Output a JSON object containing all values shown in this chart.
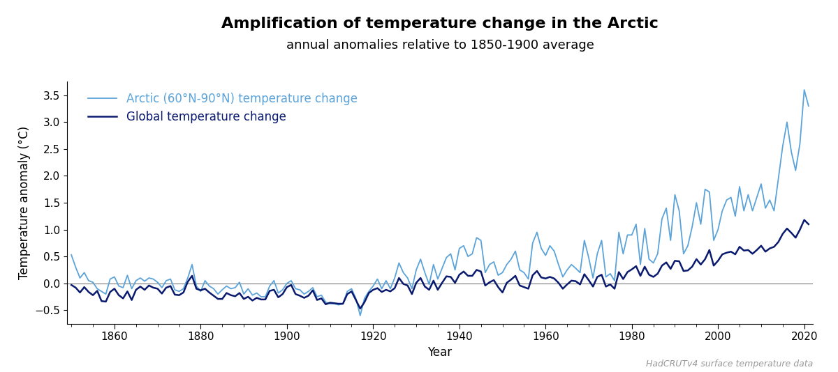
{
  "title": "Amplification of temperature change in the Arctic",
  "subtitle": "annual anomalies relative to 1850-1900 average",
  "xlabel": "Year",
  "ylabel": "Temperature anomaly (°C)",
  "xlim": [
    1849,
    2022
  ],
  "ylim": [
    -0.75,
    3.75
  ],
  "yticks": [
    -0.5,
    0.0,
    0.5,
    1.0,
    1.5,
    2.0,
    2.5,
    3.0,
    3.5
  ],
  "xticks": [
    1860,
    1880,
    1900,
    1920,
    1940,
    1960,
    1980,
    2000,
    2020
  ],
  "arctic_color": "#5BA3D9",
  "global_color": "#0A1A6E",
  "arctic_label": "Arctic (60°N-90°N) temperature change",
  "global_label": "Global temperature change",
  "watermark": "HadCRUTv4 surface temperature data",
  "background_color": "#FFFFFF",
  "title_fontsize": 16,
  "subtitle_fontsize": 13,
  "label_fontsize": 12,
  "legend_fontsize": 12,
  "years": [
    1850,
    1851,
    1852,
    1853,
    1854,
    1855,
    1856,
    1857,
    1858,
    1859,
    1860,
    1861,
    1862,
    1863,
    1864,
    1865,
    1866,
    1867,
    1868,
    1869,
    1870,
    1871,
    1872,
    1873,
    1874,
    1875,
    1876,
    1877,
    1878,
    1879,
    1880,
    1881,
    1882,
    1883,
    1884,
    1885,
    1886,
    1887,
    1888,
    1889,
    1890,
    1891,
    1892,
    1893,
    1894,
    1895,
    1896,
    1897,
    1898,
    1899,
    1900,
    1901,
    1902,
    1903,
    1904,
    1905,
    1906,
    1907,
    1908,
    1909,
    1910,
    1911,
    1912,
    1913,
    1914,
    1915,
    1916,
    1917,
    1918,
    1919,
    1920,
    1921,
    1922,
    1923,
    1924,
    1925,
    1926,
    1927,
    1928,
    1929,
    1930,
    1931,
    1932,
    1933,
    1934,
    1935,
    1936,
    1937,
    1938,
    1939,
    1940,
    1941,
    1942,
    1943,
    1944,
    1945,
    1946,
    1947,
    1948,
    1949,
    1950,
    1951,
    1952,
    1953,
    1954,
    1955,
    1956,
    1957,
    1958,
    1959,
    1960,
    1961,
    1962,
    1963,
    1964,
    1965,
    1966,
    1967,
    1968,
    1969,
    1970,
    1971,
    1972,
    1973,
    1974,
    1975,
    1976,
    1977,
    1978,
    1979,
    1980,
    1981,
    1982,
    1983,
    1984,
    1985,
    1986,
    1987,
    1988,
    1989,
    1990,
    1991,
    1992,
    1993,
    1994,
    1995,
    1996,
    1997,
    1998,
    1999,
    2000,
    2001,
    2002,
    2003,
    2004,
    2005,
    2006,
    2007,
    2008,
    2009,
    2010,
    2011,
    2012,
    2013,
    2014,
    2015,
    2016,
    2017,
    2018,
    2019,
    2020,
    2021
  ],
  "global_anomaly": [
    -0.03,
    -0.08,
    -0.17,
    -0.07,
    -0.16,
    -0.22,
    -0.14,
    -0.33,
    -0.34,
    -0.16,
    -0.1,
    -0.22,
    -0.28,
    -0.15,
    -0.31,
    -0.12,
    -0.06,
    -0.12,
    -0.04,
    -0.08,
    -0.1,
    -0.19,
    -0.08,
    -0.05,
    -0.21,
    -0.22,
    -0.17,
    0.03,
    0.14,
    -0.1,
    -0.13,
    -0.1,
    -0.17,
    -0.23,
    -0.29,
    -0.29,
    -0.18,
    -0.22,
    -0.24,
    -0.18,
    -0.29,
    -0.25,
    -0.32,
    -0.27,
    -0.3,
    -0.3,
    -0.14,
    -0.12,
    -0.26,
    -0.2,
    -0.07,
    -0.03,
    -0.2,
    -0.23,
    -0.27,
    -0.23,
    -0.13,
    -0.31,
    -0.28,
    -0.39,
    -0.36,
    -0.37,
    -0.38,
    -0.38,
    -0.2,
    -0.15,
    -0.31,
    -0.47,
    -0.35,
    -0.18,
    -0.12,
    -0.09,
    -0.16,
    -0.12,
    -0.15,
    -0.09,
    0.1,
    -0.01,
    -0.04,
    -0.2,
    0.01,
    0.1,
    -0.06,
    -0.12,
    0.05,
    -0.12,
    0.01,
    0.13,
    0.12,
    0.01,
    0.16,
    0.22,
    0.14,
    0.14,
    0.25,
    0.22,
    -0.04,
    0.02,
    0.06,
    -0.07,
    -0.17,
    0.01,
    0.07,
    0.14,
    -0.04,
    -0.07,
    -0.1,
    0.15,
    0.23,
    0.11,
    0.09,
    0.12,
    0.09,
    0.01,
    -0.1,
    -0.02,
    0.05,
    0.04,
    -0.02,
    0.17,
    0.06,
    -0.06,
    0.12,
    0.16,
    -0.06,
    -0.02,
    -0.1,
    0.21,
    0.08,
    0.21,
    0.26,
    0.32,
    0.14,
    0.31,
    0.16,
    0.12,
    0.18,
    0.33,
    0.39,
    0.27,
    0.42,
    0.41,
    0.23,
    0.24,
    0.31,
    0.45,
    0.35,
    0.45,
    0.62,
    0.33,
    0.42,
    0.54,
    0.57,
    0.59,
    0.54,
    0.68,
    0.61,
    0.62,
    0.55,
    0.62,
    0.7,
    0.59,
    0.65,
    0.68,
    0.77,
    0.92,
    1.02,
    0.94,
    0.85,
    1.0,
    1.18,
    1.1
  ],
  "arctic_anomaly": [
    0.53,
    0.3,
    0.1,
    0.2,
    0.05,
    0.02,
    -0.1,
    -0.15,
    -0.2,
    0.08,
    0.12,
    -0.05,
    -0.08,
    0.15,
    -0.1,
    0.05,
    0.1,
    0.04,
    0.1,
    0.08,
    0.02,
    -0.08,
    0.05,
    0.08,
    -0.12,
    -0.15,
    -0.1,
    0.1,
    0.35,
    -0.05,
    -0.15,
    0.05,
    -0.05,
    -0.1,
    -0.2,
    -0.12,
    -0.05,
    -0.1,
    -0.08,
    0.02,
    -0.2,
    -0.1,
    -0.22,
    -0.18,
    -0.25,
    -0.25,
    -0.05,
    0.05,
    -0.18,
    -0.12,
    0.0,
    0.05,
    -0.1,
    -0.12,
    -0.2,
    -0.15,
    -0.08,
    -0.25,
    -0.22,
    -0.35,
    -0.38,
    -0.38,
    -0.4,
    -0.38,
    -0.15,
    -0.1,
    -0.28,
    -0.6,
    -0.28,
    -0.15,
    -0.05,
    0.08,
    -0.1,
    0.05,
    -0.1,
    0.1,
    0.38,
    0.2,
    0.1,
    -0.1,
    0.25,
    0.45,
    0.2,
    -0.02,
    0.35,
    0.08,
    0.28,
    0.48,
    0.55,
    0.25,
    0.65,
    0.7,
    0.5,
    0.55,
    0.85,
    0.8,
    0.2,
    0.35,
    0.4,
    0.15,
    0.2,
    0.35,
    0.45,
    0.6,
    0.25,
    0.2,
    0.08,
    0.75,
    0.95,
    0.65,
    0.52,
    0.7,
    0.6,
    0.35,
    0.12,
    0.25,
    0.35,
    0.28,
    0.2,
    0.8,
    0.48,
    0.1,
    0.55,
    0.8,
    0.12,
    0.18,
    0.05,
    0.95,
    0.55,
    0.9,
    0.9,
    1.1,
    0.35,
    1.02,
    0.45,
    0.38,
    0.55,
    1.2,
    1.4,
    0.8,
    1.65,
    1.35,
    0.55,
    0.7,
    1.05,
    1.5,
    1.1,
    1.75,
    1.7,
    0.8,
    1.0,
    1.35,
    1.55,
    1.6,
    1.25,
    1.8,
    1.35,
    1.65,
    1.35,
    1.6,
    1.85,
    1.4,
    1.55,
    1.35,
    1.95,
    2.55,
    3.0,
    2.45,
    2.1,
    2.6,
    3.6,
    3.3
  ]
}
